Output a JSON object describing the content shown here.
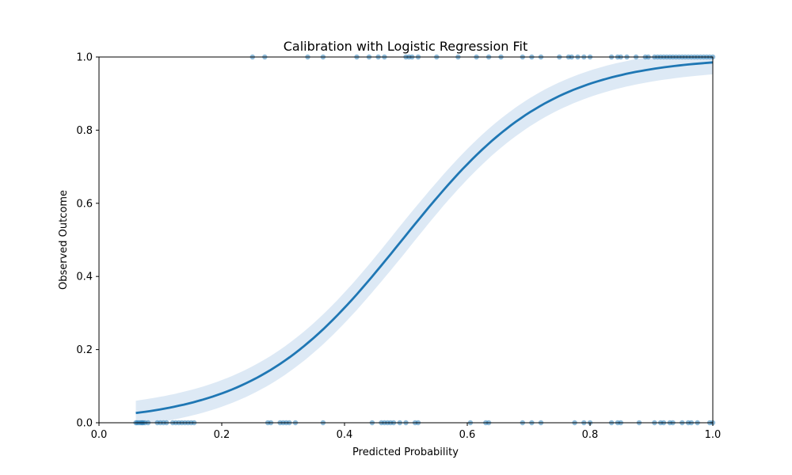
{
  "chart_data": {
    "type": "scatter",
    "title": "Calibration with Logistic Regression Fit",
    "xlabel": "Predicted Probability",
    "ylabel": "Observed Outcome",
    "xlim": [
      0.0,
      1.0
    ],
    "ylim": [
      0.0,
      1.0
    ],
    "x_ticks": [
      "0.0",
      "0.2",
      "0.4",
      "0.6",
      "0.8",
      "1.0"
    ],
    "y_ticks": [
      "0.0",
      "0.2",
      "0.4",
      "0.6",
      "0.8",
      "1.0"
    ],
    "grid": false,
    "colors": {
      "series": "#1f77b4",
      "band": "#c6dbef"
    },
    "logistic_fit": {
      "intercept": -4.1,
      "slope": 8.3,
      "x_range": [
        0.06,
        1.0
      ]
    },
    "series": [
      {
        "kind": "points",
        "y": 0,
        "x": [
          0.06,
          0.062,
          0.065,
          0.068,
          0.07,
          0.072,
          0.075,
          0.08,
          0.095,
          0.1,
          0.105,
          0.11,
          0.12,
          0.125,
          0.13,
          0.135,
          0.14,
          0.145,
          0.15,
          0.155,
          0.275,
          0.28,
          0.295,
          0.3,
          0.305,
          0.31,
          0.32,
          0.365,
          0.445,
          0.46,
          0.465,
          0.47,
          0.475,
          0.48,
          0.49,
          0.5,
          0.515,
          0.52,
          0.605,
          0.63,
          0.635,
          0.69,
          0.705,
          0.72,
          0.775,
          0.79,
          0.8,
          0.835,
          0.845,
          0.85,
          0.88,
          0.905,
          0.915,
          0.92,
          0.93,
          0.935,
          0.95,
          0.96,
          0.965,
          0.975,
          0.995,
          1.0
        ]
      },
      {
        "kind": "points",
        "y": 1,
        "x": [
          0.25,
          0.27,
          0.34,
          0.365,
          0.42,
          0.44,
          0.455,
          0.465,
          0.5,
          0.505,
          0.51,
          0.52,
          0.55,
          0.585,
          0.615,
          0.635,
          0.655,
          0.69,
          0.705,
          0.72,
          0.75,
          0.765,
          0.77,
          0.78,
          0.79,
          0.8,
          0.835,
          0.845,
          0.85,
          0.86,
          0.875,
          0.89,
          0.895,
          0.905,
          0.91,
          0.915,
          0.92,
          0.925,
          0.93,
          0.935,
          0.94,
          0.945,
          0.95,
          0.955,
          0.96,
          0.965,
          0.97,
          0.975,
          0.98,
          0.985,
          0.99,
          0.995,
          1.0
        ]
      }
    ]
  }
}
